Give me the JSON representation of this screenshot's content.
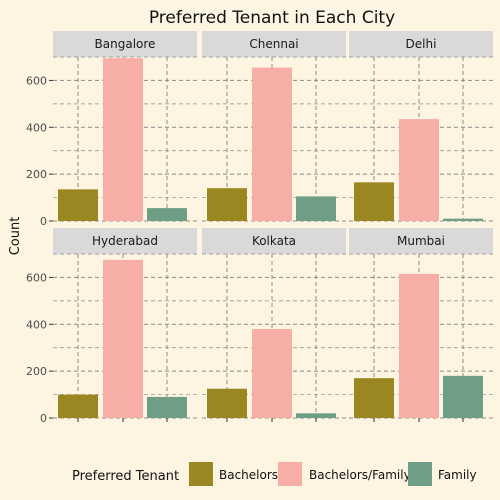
{
  "chart_data": {
    "type": "bar",
    "title": "Preferred Tenant in Each City",
    "xlabel": "",
    "ylabel": "Count",
    "ylim": [
      0,
      700
    ],
    "yticks": [
      0,
      200,
      400,
      600
    ],
    "grid": true,
    "facets": [
      "Bangalore",
      "Chennai",
      "Delhi",
      "Hyderabad",
      "Kolkata",
      "Mumbai"
    ],
    "categories": [
      "Bachelors",
      "Bachelors/Family",
      "Family"
    ],
    "colors": {
      "Bachelors": "#9b8722",
      "Bachelors/Family": "#f7aea6",
      "Family": "#6e9f86"
    },
    "values": {
      "Bangalore": [
        135,
        695,
        55
      ],
      "Chennai": [
        140,
        655,
        105
      ],
      "Delhi": [
        165,
        435,
        10
      ],
      "Hyderabad": [
        100,
        675,
        90
      ],
      "Kolkata": [
        125,
        380,
        20
      ],
      "Mumbai": [
        170,
        615,
        180
      ]
    },
    "legend": {
      "title": "Preferred Tenant",
      "position": "bottom",
      "entries": [
        "Bachelors",
        "Bachelors/Family",
        "Family"
      ]
    }
  }
}
